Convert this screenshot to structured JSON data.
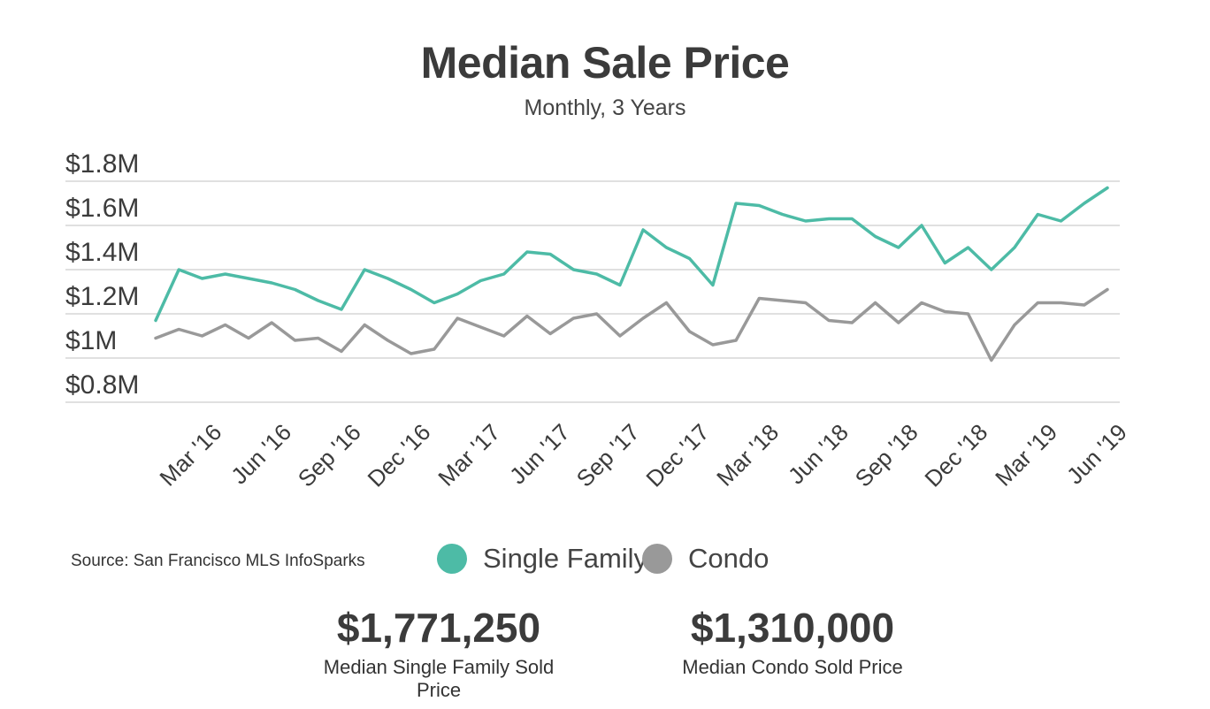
{
  "chart_data": {
    "type": "line",
    "title": "Median Sale Price",
    "subtitle": "Monthly, 3 Years",
    "xlabel": "",
    "ylabel": "",
    "ylim": [
      0.8,
      1.8
    ],
    "y_ticks": [
      "$1.8M",
      "$1.6M",
      "$1.4M",
      "$1.2M",
      "$1M",
      "$0.8M"
    ],
    "y_tick_values": [
      1.8,
      1.6,
      1.4,
      1.2,
      1.0,
      0.8
    ],
    "x_tick_labels": [
      "Mar '16",
      "Jun '16",
      "Sep '16",
      "Dec '16",
      "Mar '17",
      "Jun '17",
      "Sep '17",
      "Dec '17",
      "Mar '18",
      "Jun '18",
      "Sep '18",
      "Dec '18",
      "Mar '19",
      "Jun '19"
    ],
    "x": [
      "Jan '16",
      "Feb '16",
      "Mar '16",
      "Apr '16",
      "May '16",
      "Jun '16",
      "Jul '16",
      "Aug '16",
      "Sep '16",
      "Oct '16",
      "Nov '16",
      "Dec '16",
      "Jan '17",
      "Feb '17",
      "Mar '17",
      "Apr '17",
      "May '17",
      "Jun '17",
      "Jul '17",
      "Aug '17",
      "Sep '17",
      "Oct '17",
      "Nov '17",
      "Dec '17",
      "Jan '18",
      "Feb '18",
      "Mar '18",
      "Apr '18",
      "May '18",
      "Jun '18",
      "Jul '18",
      "Aug '18",
      "Sep '18",
      "Oct '18",
      "Nov '18",
      "Dec '18",
      "Jan '19",
      "Feb '19",
      "Mar '19",
      "Apr '19",
      "May '19",
      "Jun '19"
    ],
    "grid": true,
    "legend_placement": "bottom",
    "series": [
      {
        "name": "Single Family",
        "color": "#4dbba6",
        "values": [
          1.17,
          1.4,
          1.36,
          1.38,
          1.36,
          1.34,
          1.31,
          1.26,
          1.22,
          1.4,
          1.36,
          1.31,
          1.25,
          1.29,
          1.35,
          1.38,
          1.48,
          1.47,
          1.4,
          1.38,
          1.33,
          1.58,
          1.5,
          1.45,
          1.33,
          1.7,
          1.69,
          1.65,
          1.62,
          1.63,
          1.63,
          1.55,
          1.5,
          1.6,
          1.43,
          1.5,
          1.4,
          1.5,
          1.65,
          1.62,
          1.7,
          1.77
        ]
      },
      {
        "name": "Condo",
        "color": "#999999",
        "values": [
          1.09,
          1.13,
          1.1,
          1.15,
          1.09,
          1.16,
          1.08,
          1.09,
          1.03,
          1.15,
          1.08,
          1.02,
          1.04,
          1.18,
          1.14,
          1.1,
          1.19,
          1.11,
          1.18,
          1.2,
          1.1,
          1.18,
          1.25,
          1.12,
          1.06,
          1.08,
          1.27,
          1.26,
          1.25,
          1.17,
          1.16,
          1.25,
          1.16,
          1.25,
          1.21,
          1.2,
          0.99,
          1.15,
          1.25,
          1.25,
          1.24,
          1.31
        ]
      }
    ]
  },
  "source": "Source:  San Francisco MLS InfoSparks",
  "stats": [
    {
      "value": "$1,771,250",
      "label": "Median Single Family Sold Price"
    },
    {
      "value": "$1,310,000",
      "label": "Median Condo Sold Price"
    }
  ]
}
